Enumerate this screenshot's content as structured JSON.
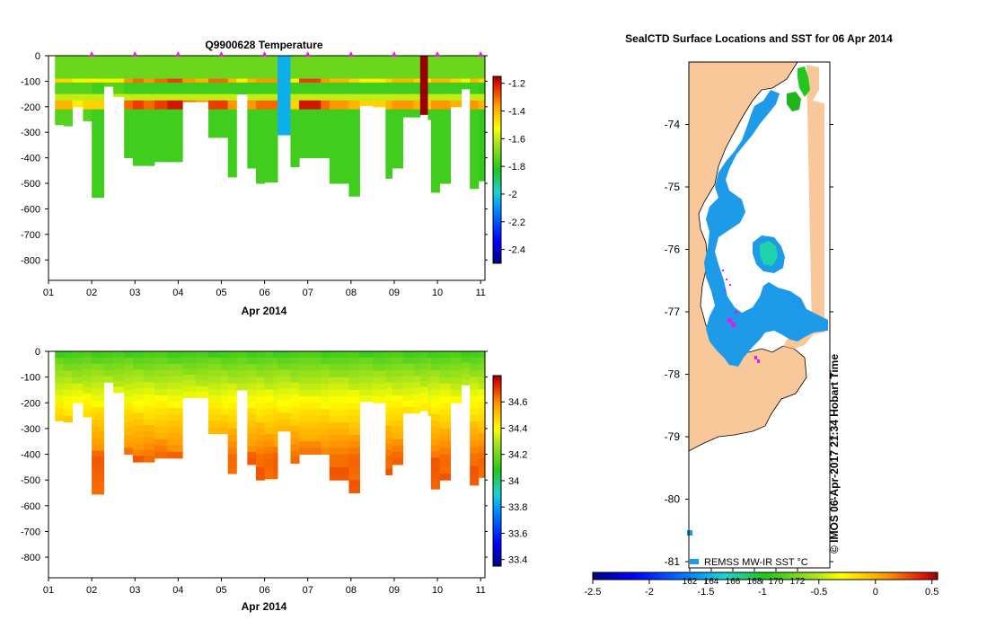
{
  "chart_data": [
    {
      "id": "temperature",
      "type": "heatmap",
      "title": "Q9900628  Temperature",
      "xlabel": "Apr 2014",
      "ylabel": "",
      "xlim": [
        1,
        11.1
      ],
      "ylim": [
        -880,
        0
      ],
      "x_ticks": [
        "01",
        "02",
        "03",
        "04",
        "05",
        "06",
        "07",
        "08",
        "09",
        "10",
        "11"
      ],
      "y_ticks": [
        "0",
        "-100",
        "-200",
        "-300",
        "-400",
        "-500",
        "-600",
        "-700",
        "-800"
      ],
      "colorbar": {
        "min": -2.5,
        "max": -1.15,
        "ticks": [
          "-1.2",
          "-1.4",
          "-1.6",
          "-1.8",
          "-2",
          "-2.2",
          "-2.4"
        ]
      },
      "profile_markers_day": [
        2,
        3,
        4,
        5,
        6,
        7,
        8,
        9,
        10,
        11
      ],
      "profiles": [
        {
          "x0": 1.15,
          "x1": 1.35,
          "depth": 270,
          "value": -1.75,
          "warm": -1.45
        },
        {
          "x0": 1.35,
          "x1": 1.55,
          "depth": 275,
          "value": -1.75,
          "warm": -1.45
        },
        {
          "x0": 1.55,
          "x1": 1.8,
          "depth": 200,
          "value": -1.75,
          "warm": -1.55
        },
        {
          "x0": 1.8,
          "x1": 2.0,
          "depth": 255,
          "value": -1.75,
          "warm": -1.5
        },
        {
          "x0": 2.0,
          "x1": 2.28,
          "depth": 555,
          "value": -1.78,
          "warm": -1.5
        },
        {
          "x0": 2.28,
          "x1": 2.5,
          "depth": 120,
          "value": -1.75,
          "warm": -1.55
        },
        {
          "x0": 2.5,
          "x1": 2.75,
          "depth": 160,
          "value": -1.75,
          "warm": -1.5
        },
        {
          "x0": 2.75,
          "x1": 2.95,
          "depth": 400,
          "value": -1.78,
          "warm": -1.35
        },
        {
          "x0": 2.95,
          "x1": 3.2,
          "depth": 430,
          "value": -1.78,
          "warm": -1.3
        },
        {
          "x0": 3.2,
          "x1": 3.45,
          "depth": 430,
          "value": -1.78,
          "warm": -1.35
        },
        {
          "x0": 3.45,
          "x1": 3.75,
          "depth": 415,
          "value": -1.78,
          "warm": -1.3
        },
        {
          "x0": 3.75,
          "x1": 4.1,
          "depth": 415,
          "value": -1.78,
          "warm": -1.25
        },
        {
          "x0": 4.1,
          "x1": 4.4,
          "depth": 180,
          "value": -1.78,
          "warm": -1.35
        },
        {
          "x0": 4.4,
          "x1": 4.7,
          "depth": 180,
          "value": -1.78,
          "warm": -1.4
        },
        {
          "x0": 4.7,
          "x1": 5.0,
          "depth": 320,
          "value": -1.78,
          "warm": -1.3
        },
        {
          "x0": 5.0,
          "x1": 5.15,
          "depth": 320,
          "value": -1.78,
          "warm": -1.3
        },
        {
          "x0": 5.15,
          "x1": 5.35,
          "depth": 475,
          "value": -1.78,
          "warm": -1.4
        },
        {
          "x0": 5.35,
          "x1": 5.6,
          "depth": 150,
          "value": -1.78,
          "warm": -1.5
        },
        {
          "x0": 5.6,
          "x1": 5.8,
          "depth": 440,
          "value": -1.78,
          "warm": -1.4
        },
        {
          "x0": 5.8,
          "x1": 6.0,
          "depth": 500,
          "value": -1.78,
          "warm": -1.35
        },
        {
          "x0": 6.0,
          "x1": 6.2,
          "depth": 495,
          "value": -1.78,
          "warm": -1.35
        },
        {
          "x0": 6.2,
          "x1": 6.3,
          "depth": 495,
          "value": -1.78,
          "warm": -1.35
        },
        {
          "x0": 6.3,
          "x1": 6.6,
          "depth": 310,
          "value": -2.05,
          "warm": -2.05
        },
        {
          "x0": 6.6,
          "x1": 6.8,
          "depth": 435,
          "value": -1.78,
          "warm": -1.5
        },
        {
          "x0": 6.8,
          "x1": 7.3,
          "depth": 400,
          "value": -1.78,
          "warm": -1.25
        },
        {
          "x0": 7.3,
          "x1": 7.5,
          "depth": 400,
          "value": -1.78,
          "warm": -1.35
        },
        {
          "x0": 7.5,
          "x1": 7.95,
          "depth": 500,
          "value": -1.78,
          "warm": -1.4
        },
        {
          "x0": 7.95,
          "x1": 8.2,
          "depth": 550,
          "value": -1.78,
          "warm": -1.45
        },
        {
          "x0": 8.2,
          "x1": 8.5,
          "depth": 195,
          "value": -1.78,
          "warm": -1.5
        },
        {
          "x0": 8.5,
          "x1": 8.8,
          "depth": 200,
          "value": -1.78,
          "warm": -1.5
        },
        {
          "x0": 8.8,
          "x1": 8.95,
          "depth": 480,
          "value": -1.78,
          "warm": -1.45
        },
        {
          "x0": 8.95,
          "x1": 9.2,
          "depth": 440,
          "value": -1.78,
          "warm": -1.4
        },
        {
          "x0": 9.2,
          "x1": 9.45,
          "depth": 240,
          "value": -1.78,
          "warm": -1.4
        },
        {
          "x0": 9.45,
          "x1": 9.6,
          "depth": 240,
          "value": -1.78,
          "warm": -1.45
        },
        {
          "x0": 9.6,
          "x1": 9.78,
          "depth": 230,
          "value": -1.15,
          "warm": -1.15
        },
        {
          "x0": 9.78,
          "x1": 9.85,
          "depth": 250,
          "value": -1.78,
          "warm": -1.5
        },
        {
          "x0": 9.85,
          "x1": 10.05,
          "depth": 535,
          "value": -1.78,
          "warm": -1.4
        },
        {
          "x0": 10.05,
          "x1": 10.3,
          "depth": 500,
          "value": -1.78,
          "warm": -1.4
        },
        {
          "x0": 10.3,
          "x1": 10.55,
          "depth": 200,
          "value": -1.78,
          "warm": -1.45
        },
        {
          "x0": 10.55,
          "x1": 10.75,
          "depth": 130,
          "value": -1.78,
          "warm": -1.55
        },
        {
          "x0": 10.75,
          "x1": 10.95,
          "depth": 520,
          "value": -1.78,
          "warm": -1.4
        },
        {
          "x0": 10.95,
          "x1": 11.1,
          "depth": 490,
          "value": -1.8,
          "warm": -1.45
        }
      ]
    },
    {
      "id": "salinity",
      "type": "heatmap",
      "title": "",
      "xlabel": "Apr 2014",
      "ylabel": "",
      "xlim": [
        1,
        11.1
      ],
      "ylim": [
        -880,
        0
      ],
      "x_ticks": [
        "01",
        "02",
        "03",
        "04",
        "05",
        "06",
        "07",
        "08",
        "09",
        "10",
        "11"
      ],
      "y_ticks": [
        "0",
        "-100",
        "-200",
        "-300",
        "-400",
        "-500",
        "-600",
        "-700",
        "-800"
      ],
      "colorbar": {
        "min": 33.35,
        "max": 34.8,
        "ticks": [
          "34.6",
          "34.4",
          "34.2",
          "34",
          "33.8",
          "33.6",
          "33.4"
        ]
      },
      "profiles_ref": "temperature",
      "surface_value": 34.1,
      "deep_value": 34.65
    },
    {
      "id": "sst_map",
      "type": "heatmap",
      "title": "SealCTD Surface Locations and SST for 06 Apr 2014",
      "ylabel": "",
      "xlabel": "",
      "lat_ticks": [
        "-74",
        "-75",
        "-76",
        "-77",
        "-78",
        "-79",
        "-80",
        "-81"
      ],
      "lat_range": [
        -81.1,
        -73.0
      ],
      "lon_ticks": [
        "162",
        "164",
        "166",
        "168",
        "170",
        "172"
      ],
      "colorbar": {
        "min": -2.5,
        "max": 0.55,
        "ticks": [
          "-2.5",
          "-2",
          "-1.5",
          "-1",
          "-0.5",
          "0",
          "0.5"
        ],
        "label": "REMSS MW-IR SST °C"
      },
      "credit": "© IMOS 06-Apr-2017 21:34 Hobart Time"
    }
  ],
  "colors": {
    "land": "#f9c89a",
    "ice_blue": "#1e9be8",
    "seal_track": "#e619e6"
  }
}
